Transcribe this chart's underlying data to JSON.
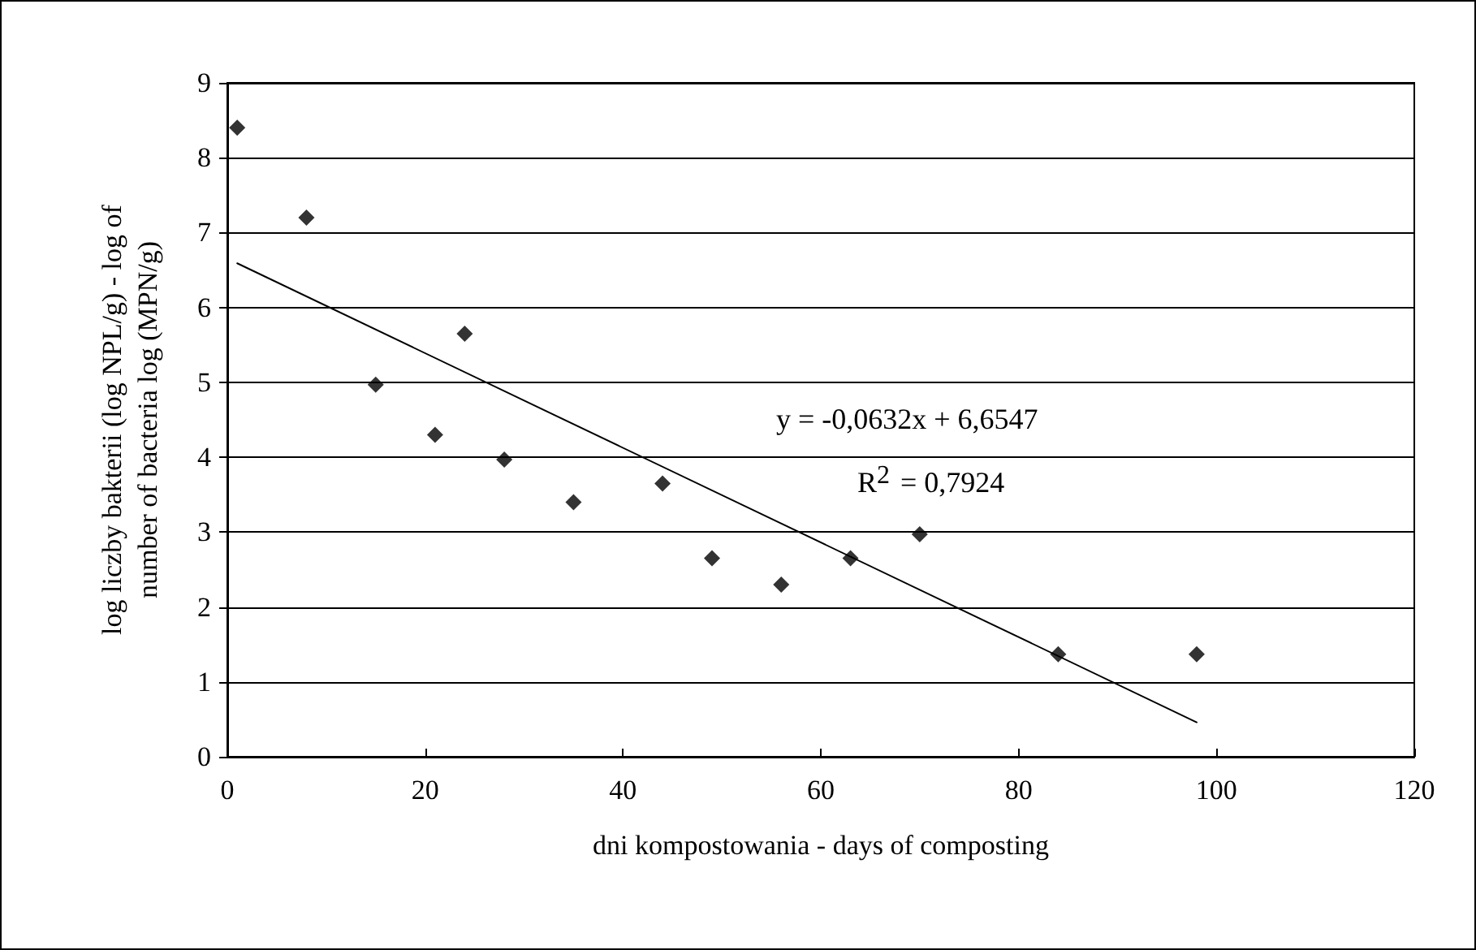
{
  "chart_data": {
    "type": "scatter",
    "xlabel": "dni kompostowania - days of composting",
    "ylabel": "log liczby bakterii (log NPL/g) - log of\nnumber of bacteria log (MPN/g)",
    "series": [
      {
        "color": "#000000",
        "marker": "diamond",
        "x": [
          1,
          8,
          15,
          21,
          24,
          28,
          35,
          44,
          49,
          56,
          63,
          70,
          84,
          98
        ],
        "values": [
          8.4,
          7.2,
          4.97,
          4.3,
          5.65,
          3.97,
          3.4,
          3.65,
          2.65,
          2.3,
          2.65,
          2.97,
          1.37,
          1.37
        ]
      },
      {
        "type": "line",
        "color": "#000000",
        "marker": "none",
        "line_style": "solid",
        "x": [
          1,
          98
        ],
        "values": [
          6.59,
          0.46
        ]
      }
    ],
    "annotations": [
      "y = -0,0632x + 6,6547",
      "R$^{2}$ = 0,7924"
    ],
    "xlim": [
      0,
      120
    ],
    "xticks": [
      0,
      20,
      40,
      60,
      80,
      100,
      120
    ],
    "ylim": [
      0,
      9
    ],
    "yticks": [
      0,
      1,
      2,
      3,
      4,
      5,
      6,
      7,
      8,
      9
    ],
    "grid": "y"
  }
}
